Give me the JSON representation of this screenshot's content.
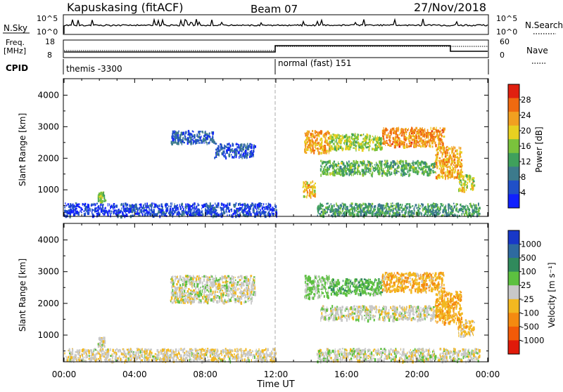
{
  "header": {
    "station": "Kapuskasing (fitACF)",
    "beam": "Beam 07",
    "date": "27/Nov/2018"
  },
  "info_panels": {
    "nsky_label": "N.Sky",
    "nsearch_label": "N.Search",
    "freq_label_1": "Freq.",
    "freq_label_2": "[MHz]",
    "nave_label": "Nave",
    "cpid_label": "CPID",
    "left_ticks_noise": [
      "10^5",
      "10^0"
    ],
    "right_ticks_noise": [
      "10^5",
      "10^0"
    ],
    "left_ticks_freq": [
      "18",
      "8"
    ],
    "right_ticks_nave": [
      "60",
      "0"
    ],
    "cpid_segments": [
      {
        "name": "themis -3300",
        "start_hour": 0,
        "end_hour": 12
      },
      {
        "name": "normal (fast) 151",
        "start_hour": 12,
        "end_hour": 24
      }
    ]
  },
  "chart_data": [
    {
      "type": "heatmap",
      "title": "",
      "xlabel": "Time UT",
      "ylabel": "Slant Range [km]",
      "xlim": [
        0,
        24
      ],
      "ylim": [
        180,
        4500
      ],
      "x_ticks": [
        "00:00",
        "04:00",
        "08:00",
        "12:00",
        "16:00",
        "20:00",
        "00:00"
      ],
      "y_ticks": [
        "1000",
        "2000",
        "3000",
        "4000"
      ],
      "colorbar": {
        "label": "Power [dB]",
        "ticks": [
          "4",
          "8",
          "12",
          "16",
          "20",
          "24",
          "28"
        ],
        "range": [
          0,
          30
        ],
        "colors": [
          "#1020ff",
          "#2050c8",
          "#3c7a8c",
          "#3fa05c",
          "#7ac23c",
          "#e8d020",
          "#f2a020",
          "#f06a10",
          "#e02010"
        ]
      },
      "echo_regions": [
        {
          "t0": 0.0,
          "t1": 12.0,
          "r0": 200,
          "r1": 600,
          "level": 4
        },
        {
          "t0": 1.9,
          "t1": 2.3,
          "r0": 650,
          "r1": 950,
          "level": 14
        },
        {
          "t0": 6.0,
          "t1": 8.5,
          "r0": 2500,
          "r1": 2900,
          "level": 6
        },
        {
          "t0": 8.5,
          "t1": 10.8,
          "r0": 2050,
          "r1": 2500,
          "level": 5
        },
        {
          "t0": 13.6,
          "t1": 15.0,
          "r0": 2200,
          "r1": 2900,
          "level": 22
        },
        {
          "t0": 15.0,
          "t1": 18.0,
          "r0": 2300,
          "r1": 2800,
          "level": 16
        },
        {
          "t0": 18.0,
          "t1": 21.5,
          "r0": 2400,
          "r1": 3000,
          "level": 23
        },
        {
          "t0": 14.5,
          "t1": 21.0,
          "r0": 1500,
          "r1": 1950,
          "level": 13
        },
        {
          "t0": 21.0,
          "t1": 22.5,
          "r0": 1400,
          "r1": 2400,
          "level": 21
        },
        {
          "t0": 22.3,
          "t1": 23.2,
          "r0": 1000,
          "r1": 1500,
          "level": 17
        },
        {
          "t0": 13.5,
          "t1": 14.2,
          "r0": 800,
          "r1": 1300,
          "level": 20
        },
        {
          "t0": 14.3,
          "t1": 23.5,
          "r0": 200,
          "r1": 600,
          "level": 11
        }
      ]
    },
    {
      "type": "heatmap",
      "title": "",
      "xlabel": "Time UT",
      "ylabel": "Slant Range [km]",
      "xlim": [
        0,
        24
      ],
      "ylim": [
        180,
        4500
      ],
      "x_ticks": [
        "00:00",
        "04:00",
        "08:00",
        "12:00",
        "16:00",
        "20:00",
        "00:00"
      ],
      "y_ticks": [
        "1000",
        "2000",
        "3000",
        "4000"
      ],
      "colorbar": {
        "label": "Velocity [m s⁻¹]",
        "ticks": [
          "1000",
          "500",
          "100",
          "25",
          "-25",
          "-100",
          "-500",
          "-1000"
        ],
        "range": [
          -1200,
          1200
        ],
        "colors": [
          "#1838c8",
          "#2e6aa0",
          "#308a5c",
          "#5cc040",
          "#c8c8c8",
          "#f2b820",
          "#f58a10",
          "#f25a08",
          "#e01a0a"
        ]
      },
      "echo_regions": [
        {
          "t0": 0.0,
          "t1": 12.0,
          "r0": 200,
          "r1": 600,
          "level": -60
        },
        {
          "t0": 1.9,
          "t1": 2.3,
          "r0": 650,
          "r1": 950,
          "level": -40
        },
        {
          "t0": 6.0,
          "t1": 10.8,
          "r0": 2050,
          "r1": 2900,
          "level": 0
        },
        {
          "t0": 13.6,
          "t1": 15.0,
          "r0": 2200,
          "r1": 2900,
          "level": 150
        },
        {
          "t0": 15.0,
          "t1": 18.0,
          "r0": 2300,
          "r1": 2800,
          "level": 300
        },
        {
          "t0": 18.0,
          "t1": 21.5,
          "r0": 2400,
          "r1": 3000,
          "level": -300
        },
        {
          "t0": 14.5,
          "t1": 21.0,
          "r0": 1500,
          "r1": 1950,
          "level": 0
        },
        {
          "t0": 21.0,
          "t1": 22.5,
          "r0": 1400,
          "r1": 2400,
          "level": -350
        },
        {
          "t0": 22.3,
          "t1": 23.2,
          "r0": 1000,
          "r1": 1500,
          "level": -250
        },
        {
          "t0": 14.3,
          "t1": 23.5,
          "r0": 200,
          "r1": 600,
          "level": 0
        }
      ]
    }
  ]
}
